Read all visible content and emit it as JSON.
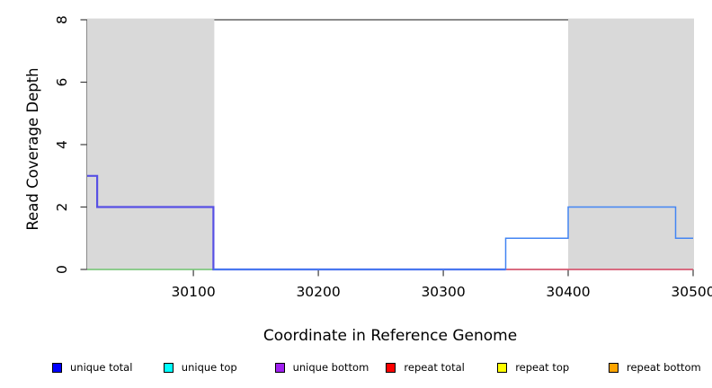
{
  "chart_data": {
    "type": "line",
    "subtype": "step",
    "title": "",
    "xlabel": "Coordinate in Reference Genome",
    "ylabel": "Read Coverage Depth",
    "xlim": [
      30015,
      30500
    ],
    "ylim": [
      0,
      8
    ],
    "x_ticks": [
      30100,
      30200,
      30300,
      30400,
      30500
    ],
    "y_ticks": [
      0,
      2,
      4,
      6,
      8
    ],
    "grid": false,
    "background": "#ffffff",
    "shade_color": "#d9d9d9",
    "shaded_regions": [
      {
        "x0": 30015,
        "x1": 30116
      },
      {
        "x0": 30400,
        "x1": 30500
      }
    ],
    "series": [
      {
        "name": "green-baseline-segment",
        "color": "#74c874",
        "width": 1.4,
        "points": [
          [
            30015,
            0
          ],
          [
            30116,
            0
          ]
        ]
      },
      {
        "name": "violet-step-line",
        "color": "#5750e4",
        "width": 2.2,
        "points": [
          [
            30015,
            3
          ],
          [
            30023,
            3
          ],
          [
            30023,
            2
          ],
          [
            30116,
            2
          ],
          [
            30116,
            0
          ],
          [
            30350,
            0
          ]
        ]
      },
      {
        "name": "red-baseline-segment",
        "color": "#d94964",
        "width": 1.4,
        "points": [
          [
            30350,
            0
          ],
          [
            30500,
            0
          ]
        ]
      },
      {
        "name": "blue-step-line",
        "color": "#4385f3",
        "width": 1.5,
        "points": [
          [
            30116,
            0
          ],
          [
            30350,
            0
          ],
          [
            30350,
            1
          ],
          [
            30400,
            1
          ],
          [
            30400,
            2
          ],
          [
            30486,
            2
          ],
          [
            30486,
            1
          ],
          [
            30500,
            1
          ]
        ]
      }
    ],
    "legend": {
      "position": "bottom",
      "items": [
        {
          "label": "unique total",
          "color": "#0000ff"
        },
        {
          "label": "unique top",
          "color": "#00ffff"
        },
        {
          "label": "unique bottom",
          "color": "#a020f0"
        },
        {
          "label": "repeat total",
          "color": "#ff0000"
        },
        {
          "label": "repeat top",
          "color": "#ffff00"
        },
        {
          "label": "repeat bottom",
          "color": "#ffa500"
        }
      ]
    }
  }
}
